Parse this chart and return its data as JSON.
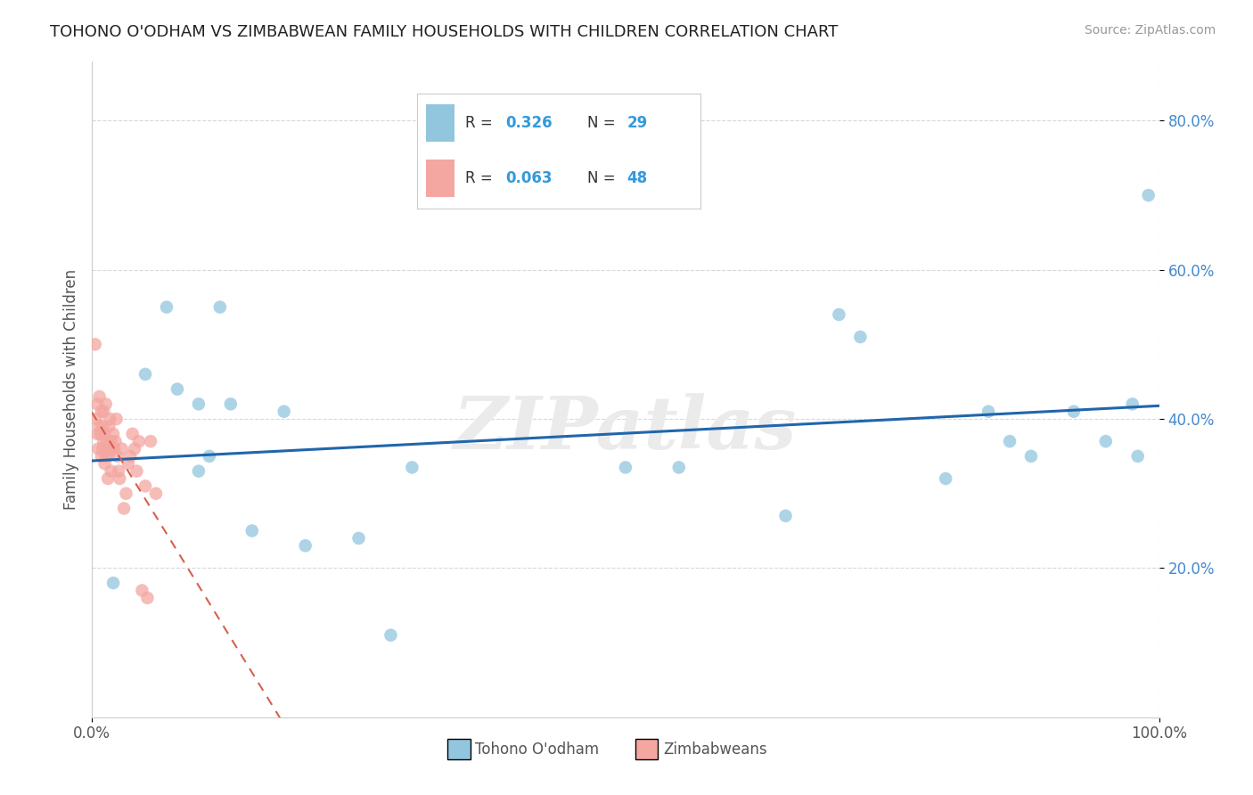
{
  "title": "TOHONO O'ODHAM VS ZIMBABWEAN FAMILY HOUSEHOLDS WITH CHILDREN CORRELATION CHART",
  "source": "Source: ZipAtlas.com",
  "xlabel_bottom_1": "Tohono O'odham",
  "xlabel_bottom_2": "Zimbabweans",
  "ylabel": "Family Households with Children",
  "xlim": [
    0.0,
    1.0
  ],
  "ylim": [
    0.0,
    0.88
  ],
  "xticks": [
    0.0,
    1.0
  ],
  "xticklabels": [
    "0.0%",
    "100.0%"
  ],
  "yticks": [
    0.2,
    0.4,
    0.6,
    0.8
  ],
  "yticklabels": [
    "20.0%",
    "40.0%",
    "60.0%",
    "80.0%"
  ],
  "legend_r1": "R = 0.326",
  "legend_n1": "N = 29",
  "legend_r2": "R = 0.063",
  "legend_n2": "N = 48",
  "blue_color": "#92c5de",
  "pink_color": "#f4a6a0",
  "blue_line_color": "#2166ac",
  "pink_line_color": "#d6604d",
  "tohono_x": [
    0.02,
    0.05,
    0.07,
    0.08,
    0.1,
    0.1,
    0.11,
    0.12,
    0.13,
    0.15,
    0.18,
    0.2,
    0.25,
    0.28,
    0.3,
    0.5,
    0.55,
    0.65,
    0.7,
    0.72,
    0.8,
    0.84,
    0.86,
    0.88,
    0.92,
    0.95,
    0.98,
    0.975,
    0.99
  ],
  "tohono_y": [
    0.18,
    0.46,
    0.55,
    0.44,
    0.33,
    0.42,
    0.35,
    0.55,
    0.42,
    0.25,
    0.41,
    0.23,
    0.24,
    0.11,
    0.335,
    0.335,
    0.335,
    0.27,
    0.54,
    0.51,
    0.32,
    0.41,
    0.37,
    0.35,
    0.41,
    0.37,
    0.35,
    0.42,
    0.7
  ],
  "zimbabwe_x": [
    0.003,
    0.004,
    0.005,
    0.005,
    0.006,
    0.007,
    0.007,
    0.008,
    0.009,
    0.009,
    0.01,
    0.01,
    0.011,
    0.011,
    0.012,
    0.012,
    0.013,
    0.013,
    0.014,
    0.015,
    0.015,
    0.016,
    0.016,
    0.017,
    0.018,
    0.018,
    0.019,
    0.02,
    0.021,
    0.022,
    0.023,
    0.024,
    0.025,
    0.026,
    0.028,
    0.03,
    0.032,
    0.034,
    0.036,
    0.038,
    0.04,
    0.042,
    0.044,
    0.047,
    0.05,
    0.052,
    0.055,
    0.06
  ],
  "zimbabwe_y": [
    0.5,
    0.4,
    0.42,
    0.38,
    0.36,
    0.43,
    0.39,
    0.38,
    0.35,
    0.41,
    0.36,
    0.39,
    0.37,
    0.41,
    0.34,
    0.38,
    0.35,
    0.42,
    0.37,
    0.35,
    0.32,
    0.36,
    0.39,
    0.4,
    0.33,
    0.37,
    0.36,
    0.38,
    0.36,
    0.37,
    0.4,
    0.35,
    0.33,
    0.32,
    0.36,
    0.28,
    0.3,
    0.34,
    0.35,
    0.38,
    0.36,
    0.33,
    0.37,
    0.17,
    0.31,
    0.16,
    0.37,
    0.3
  ],
  "background_color": "#ffffff",
  "grid_color": "#d8d8d8",
  "watermark": "ZIPatlas"
}
